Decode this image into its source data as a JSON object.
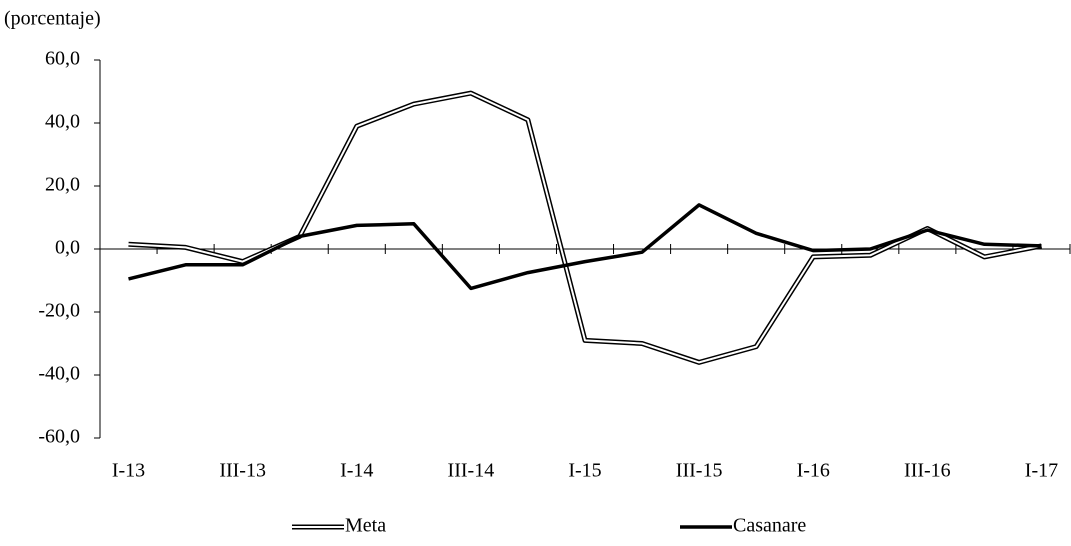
{
  "chart_data": {
    "type": "line",
    "y_label": "(porcentaje)",
    "categories": [
      "I-13",
      null,
      "III-13",
      null,
      "I-14",
      null,
      "III-14",
      null,
      "I-15",
      null,
      "III-15",
      null,
      "I-16",
      null,
      "III-16",
      null,
      "I-17"
    ],
    "series": [
      {
        "name": "Meta",
        "color": "#000000",
        "style": "double",
        "values": [
          1.5,
          0.5,
          -4,
          4,
          39,
          46,
          49.5,
          41,
          -29,
          -30,
          -36,
          -31,
          -2.5,
          -2,
          6.5,
          -2.5,
          1
        ]
      },
      {
        "name": "Casanare",
        "color": "#000000",
        "style": "solid",
        "values": [
          -9.5,
          -5,
          -5,
          4,
          7.5,
          8,
          -12.5,
          -7.5,
          -4,
          -1,
          14,
          5,
          -0.5,
          0,
          6,
          1.5,
          1
        ]
      }
    ],
    "ylim": [
      -60,
      60
    ],
    "yticks": [
      {
        "value": -60,
        "label": "-60,0"
      },
      {
        "value": -40,
        "label": "-40,0"
      },
      {
        "value": -20,
        "label": "-20,0"
      },
      {
        "value": 0,
        "label": "0,0"
      },
      {
        "value": 20,
        "label": "20,0"
      },
      {
        "value": 40,
        "label": "40,0"
      },
      {
        "value": 60,
        "label": "60,0"
      }
    ],
    "legend": "bottom",
    "grid": false
  }
}
